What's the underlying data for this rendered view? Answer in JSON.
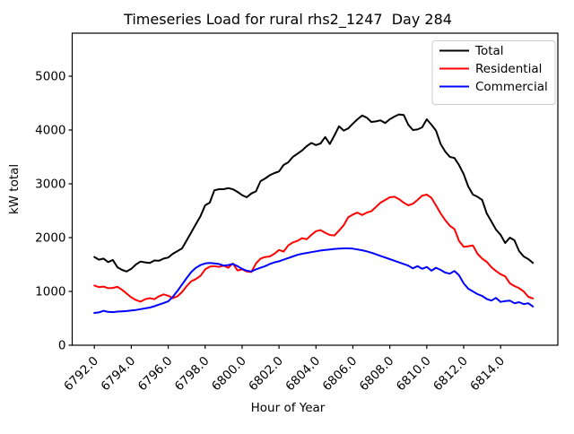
{
  "figure": {
    "title": "Timeseries Load for rural rhs2_1247  Day 284",
    "xlabel": "Hour of Year",
    "ylabel": "kW total"
  },
  "legend": {
    "position": "upper right",
    "items": [
      {
        "label": "Total",
        "color": "#000000"
      },
      {
        "label": "Residential",
        "color": "#ff0000"
      },
      {
        "label": "Commercial",
        "color": "#0000ff"
      }
    ]
  },
  "chart_data": {
    "type": "line",
    "title": "Timeseries Load for rural rhs2_1247  Day 284",
    "xlabel": "Hour of Year",
    "ylabel": "kW total",
    "xlim": [
      6790.8,
      6817.1
    ],
    "ylim": [
      0,
      5800
    ],
    "grid": false,
    "legend_position": "upper right",
    "xticks": {
      "values": [
        6792,
        6794,
        6796,
        6798,
        6800,
        6802,
        6804,
        6806,
        6808,
        6810,
        6812,
        6814
      ],
      "labels": [
        "6792.0",
        "6794.0",
        "6796.0",
        "6798.0",
        "6800.0",
        "6802.0",
        "6804.0",
        "6806.0",
        "6808.0",
        "6810.0",
        "6812.0",
        "6814.0"
      ],
      "rotation": 45
    },
    "yticks": {
      "values": [
        0,
        1000,
        2000,
        3000,
        4000,
        5000
      ],
      "labels": [
        "0",
        "1000",
        "2000",
        "3000",
        "4000",
        "5000"
      ]
    },
    "x": [
      6792,
      6792.25,
      6792.5,
      6792.75,
      6793,
      6793.25,
      6793.5,
      6793.75,
      6794,
      6794.25,
      6794.5,
      6794.75,
      6795,
      6795.25,
      6795.5,
      6795.75,
      6796,
      6796.25,
      6796.5,
      6796.75,
      6797,
      6797.25,
      6797.5,
      6797.75,
      6798,
      6798.25,
      6798.5,
      6798.75,
      6799,
      6799.25,
      6799.5,
      6799.75,
      6800,
      6800.25,
      6800.5,
      6800.75,
      6801,
      6801.25,
      6801.5,
      6801.75,
      6802,
      6802.25,
      6802.5,
      6802.75,
      6803,
      6803.25,
      6803.5,
      6803.75,
      6804,
      6804.25,
      6804.5,
      6804.75,
      6805,
      6805.25,
      6805.5,
      6805.75,
      6806,
      6806.25,
      6806.5,
      6806.75,
      6807,
      6807.25,
      6807.5,
      6807.75,
      6808,
      6808.25,
      6808.5,
      6808.75,
      6809,
      6809.25,
      6809.5,
      6809.75,
      6810,
      6810.25,
      6810.5,
      6810.75,
      6811,
      6811.25,
      6811.5,
      6811.75,
      6812,
      6812.25,
      6812.5,
      6812.75,
      6813,
      6813.25,
      6813.5,
      6813.75,
      6814,
      6814.25,
      6814.5,
      6814.75,
      6815,
      6815.25,
      6815.5,
      6815.75
    ],
    "series": [
      {
        "name": "Total",
        "color": "#000000",
        "values": [
          1640,
          1590,
          1610,
          1545,
          1585,
          1450,
          1400,
          1370,
          1420,
          1500,
          1555,
          1540,
          1530,
          1575,
          1570,
          1610,
          1630,
          1700,
          1750,
          1800,
          1950,
          2100,
          2250,
          2400,
          2600,
          2650,
          2880,
          2900,
          2900,
          2920,
          2900,
          2850,
          2790,
          2750,
          2820,
          2860,
          3050,
          3100,
          3160,
          3200,
          3230,
          3350,
          3400,
          3500,
          3560,
          3620,
          3700,
          3760,
          3720,
          3750,
          3870,
          3740,
          3900,
          4070,
          3990,
          4030,
          4120,
          4200,
          4270,
          4230,
          4150,
          4160,
          4180,
          4130,
          4200,
          4250,
          4290,
          4280,
          4100,
          4000,
          4010,
          4050,
          4200,
          4100,
          3990,
          3740,
          3600,
          3500,
          3480,
          3350,
          3180,
          2950,
          2800,
          2760,
          2700,
          2450,
          2300,
          2150,
          2050,
          1900,
          2000,
          1950,
          1750,
          1650,
          1600,
          1530
        ]
      },
      {
        "name": "Residential",
        "color": "#ff0000",
        "values": [
          1110,
          1080,
          1090,
          1060,
          1065,
          1085,
          1030,
          960,
          890,
          840,
          810,
          855,
          875,
          855,
          910,
          945,
          920,
          875,
          910,
          990,
          1100,
          1190,
          1230,
          1290,
          1410,
          1460,
          1470,
          1455,
          1480,
          1440,
          1520,
          1390,
          1410,
          1370,
          1360,
          1520,
          1610,
          1640,
          1650,
          1700,
          1770,
          1740,
          1855,
          1910,
          1940,
          1990,
          1970,
          2050,
          2120,
          2140,
          2090,
          2050,
          2040,
          2130,
          2230,
          2380,
          2430,
          2465,
          2420,
          2465,
          2490,
          2570,
          2650,
          2700,
          2750,
          2760,
          2715,
          2650,
          2600,
          2630,
          2700,
          2780,
          2800,
          2740,
          2600,
          2450,
          2325,
          2220,
          2160,
          1940,
          1830,
          1840,
          1855,
          1700,
          1610,
          1550,
          1450,
          1380,
          1320,
          1280,
          1150,
          1100,
          1060,
          1000,
          900,
          870
        ]
      },
      {
        "name": "Commercial",
        "color": "#0000ff",
        "values": [
          600,
          610,
          640,
          620,
          615,
          625,
          630,
          635,
          645,
          655,
          670,
          685,
          700,
          725,
          755,
          785,
          815,
          900,
          1010,
          1130,
          1250,
          1360,
          1440,
          1490,
          1520,
          1530,
          1520,
          1510,
          1480,
          1490,
          1510,
          1470,
          1420,
          1385,
          1370,
          1410,
          1440,
          1470,
          1510,
          1540,
          1560,
          1590,
          1620,
          1650,
          1680,
          1700,
          1715,
          1730,
          1745,
          1760,
          1770,
          1780,
          1790,
          1795,
          1800,
          1800,
          1795,
          1780,
          1765,
          1745,
          1720,
          1690,
          1660,
          1630,
          1600,
          1570,
          1540,
          1510,
          1480,
          1430,
          1470,
          1420,
          1455,
          1385,
          1440,
          1400,
          1350,
          1330,
          1380,
          1300,
          1150,
          1050,
          1000,
          950,
          915,
          860,
          830,
          880,
          805,
          820,
          830,
          780,
          800,
          765,
          780,
          720
        ]
      }
    ]
  }
}
